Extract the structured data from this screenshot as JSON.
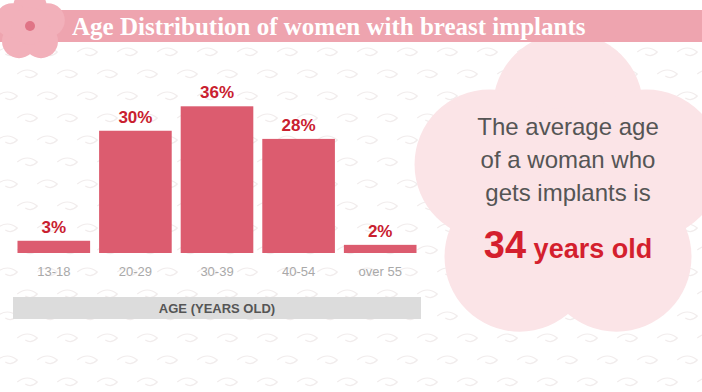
{
  "chart_data": {
    "type": "bar",
    "title": "Age Distribution of women with breast implants",
    "categories": [
      "13-18",
      "20-29",
      "30-39",
      "40-54",
      "over 55"
    ],
    "values": [
      3,
      30,
      36,
      28,
      2
    ],
    "value_labels": [
      "3%",
      "30%",
      "36%",
      "28%",
      "2%"
    ],
    "data_labels": true,
    "color": "#dc5c6f",
    "ylim": [
      0,
      40
    ],
    "tick_labels": "x",
    "x_label": "AGE (YEARS OLD)",
    "annotation": {
      "lines": [
        "The average age",
        "of a woman who",
        "gets implants is"
      ],
      "highlight": "34 years old"
    }
  }
}
